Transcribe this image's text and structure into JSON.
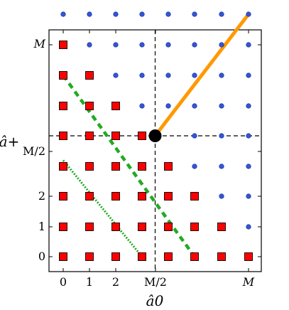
{
  "chart_data": {
    "type": "scatter",
    "title": "",
    "xlabel": "â0",
    "ylabel": "â+",
    "x_ticks": [
      "0",
      "1",
      "2",
      "M/2",
      "M"
    ],
    "y_ticks": [
      "0",
      "1",
      "2",
      "M/2",
      "M"
    ],
    "grid_columns": 8,
    "grid_rows": 8,
    "series": [
      {
        "marker": "square",
        "color": "#ff0000",
        "points": [
          [
            0,
            7
          ],
          [
            0,
            6
          ],
          [
            1,
            6
          ],
          [
            0,
            5
          ],
          [
            1,
            5
          ],
          [
            2,
            5
          ],
          [
            0,
            4
          ],
          [
            1,
            4
          ],
          [
            2,
            4
          ],
          [
            3,
            4
          ],
          [
            0,
            3
          ],
          [
            1,
            3
          ],
          [
            2,
            3
          ],
          [
            3,
            3
          ],
          [
            4,
            3
          ],
          [
            0,
            2
          ],
          [
            1,
            2
          ],
          [
            2,
            2
          ],
          [
            3,
            2
          ],
          [
            4,
            2
          ],
          [
            5,
            2
          ],
          [
            0,
            1
          ],
          [
            1,
            1
          ],
          [
            2,
            1
          ],
          [
            3,
            1
          ],
          [
            4,
            1
          ],
          [
            5,
            1
          ],
          [
            6,
            1
          ],
          [
            0,
            0
          ],
          [
            1,
            0
          ],
          [
            2,
            0
          ],
          [
            3,
            0
          ],
          [
            4,
            0
          ],
          [
            5,
            0
          ],
          [
            6,
            0
          ],
          [
            7,
            0
          ]
        ]
      },
      {
        "marker": "dot",
        "color": "#3355dd",
        "points": [
          [
            0,
            8
          ],
          [
            1,
            8
          ],
          [
            2,
            8
          ],
          [
            3,
            8
          ],
          [
            4,
            8
          ],
          [
            5,
            8
          ],
          [
            6,
            8
          ],
          [
            7,
            8
          ],
          [
            1,
            7
          ],
          [
            2,
            7
          ],
          [
            3,
            7
          ],
          [
            4,
            7
          ],
          [
            5,
            7
          ],
          [
            6,
            7
          ],
          [
            7,
            7
          ],
          [
            2,
            6
          ],
          [
            3,
            6
          ],
          [
            4,
            6
          ],
          [
            5,
            6
          ],
          [
            6,
            6
          ],
          [
            7,
            6
          ],
          [
            3,
            5
          ],
          [
            4,
            5
          ],
          [
            5,
            5
          ],
          [
            6,
            5
          ],
          [
            7,
            5
          ],
          [
            5,
            4
          ],
          [
            6,
            4
          ],
          [
            7,
            4
          ],
          [
            5,
            3
          ],
          [
            6,
            3
          ],
          [
            7,
            3
          ],
          [
            6,
            2
          ],
          [
            7,
            2
          ],
          [
            7,
            1
          ]
        ]
      }
    ],
    "center_point": [
      3.5,
      4
    ],
    "crosshair": [
      3.5,
      4
    ],
    "lines": [
      {
        "style": "solid",
        "color": "#ff9900",
        "from": [
          3.5,
          4
        ],
        "to": [
          7,
          8
        ]
      },
      {
        "style": "dashed",
        "color": "#22aa22",
        "from": [
          0,
          6
        ],
        "to": [
          5,
          0
        ]
      },
      {
        "style": "dotted",
        "color": "#22aa22",
        "from": [
          0,
          3.2
        ],
        "to": [
          3,
          0
        ]
      }
    ],
    "colors": {
      "square_fill": "#ff0000",
      "dot_fill": "#3355dd",
      "orange": "#ff9900",
      "green": "#22aa22"
    }
  }
}
